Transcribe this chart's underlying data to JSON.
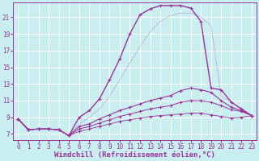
{
  "background_color": "#c8eef0",
  "grid_color": "#ffffff",
  "line_color": "#993399",
  "xlabel": "Windchill (Refroidissement éolien,°C)",
  "x_ticks": [
    0,
    1,
    2,
    3,
    4,
    5,
    6,
    7,
    8,
    9,
    10,
    11,
    12,
    13,
    14,
    15,
    16,
    17,
    18,
    19,
    20,
    21,
    22,
    23
  ],
  "y_ticks": [
    7,
    9,
    11,
    13,
    15,
    17,
    19,
    21
  ],
  "xlim": [
    -0.5,
    23.5
  ],
  "ylim": [
    6.3,
    22.8
  ],
  "curve1_x": [
    0,
    1,
    2,
    3,
    4,
    5,
    6,
    7,
    8,
    9,
    10,
    11,
    12,
    13,
    14,
    15,
    16,
    17,
    18,
    19,
    20,
    21,
    22,
    23
  ],
  "curve1_y": [
    8.8,
    7.5,
    7.6,
    7.6,
    7.5,
    6.8,
    9.0,
    9.8,
    11.2,
    13.5,
    16.0,
    19.0,
    21.3,
    22.0,
    22.4,
    22.4,
    22.4,
    22.1,
    20.5,
    12.5,
    12.3,
    10.8,
    10.0,
    9.2
  ],
  "curve2_x": [
    0,
    1,
    2,
    3,
    4,
    5,
    6,
    7,
    8,
    9,
    10,
    11,
    12,
    13,
    14,
    15,
    16,
    17,
    18,
    19,
    20,
    21,
    22,
    23
  ],
  "curve2_y": [
    8.8,
    7.5,
    7.6,
    7.6,
    7.5,
    6.8,
    7.9,
    8.2,
    8.8,
    9.3,
    9.8,
    10.2,
    10.6,
    11.0,
    11.3,
    11.6,
    12.2,
    12.5,
    12.3,
    12.0,
    11.0,
    10.2,
    9.8,
    9.2
  ],
  "curve3_x": [
    0,
    1,
    2,
    3,
    4,
    5,
    6,
    7,
    8,
    9,
    10,
    11,
    12,
    13,
    14,
    15,
    16,
    17,
    18,
    19,
    20,
    21,
    22,
    23
  ],
  "curve3_y": [
    8.8,
    7.5,
    7.6,
    7.6,
    7.5,
    6.8,
    7.6,
    7.9,
    8.3,
    8.7,
    9.1,
    9.4,
    9.7,
    10.0,
    10.2,
    10.4,
    10.8,
    11.0,
    11.0,
    10.8,
    10.4,
    9.9,
    9.7,
    9.2
  ],
  "curve4_x": [
    0,
    1,
    2,
    3,
    4,
    5,
    6,
    7,
    8,
    9,
    10,
    11,
    12,
    13,
    14,
    15,
    16,
    17,
    18,
    19,
    20,
    21,
    22,
    23
  ],
  "curve4_y": [
    8.8,
    7.5,
    7.6,
    7.6,
    7.5,
    6.8,
    7.3,
    7.6,
    7.9,
    8.2,
    8.5,
    8.7,
    8.9,
    9.1,
    9.2,
    9.3,
    9.4,
    9.5,
    9.5,
    9.3,
    9.1,
    8.9,
    9.0,
    9.2
  ],
  "curve_dotted_x": [
    0,
    1,
    2,
    3,
    4,
    5,
    6,
    7,
    8,
    9,
    10,
    11,
    12,
    13,
    14,
    15,
    16,
    17,
    18,
    19,
    20,
    21,
    22,
    23
  ],
  "curve_dotted_y": [
    8.8,
    7.5,
    7.6,
    7.6,
    7.5,
    6.8,
    8.2,
    9.0,
    10.0,
    11.5,
    13.5,
    15.5,
    17.5,
    19.3,
    20.5,
    21.2,
    21.5,
    21.5,
    21.0,
    20.0,
    11.5,
    10.8,
    10.0,
    9.2
  ],
  "tick_fontsize": 5.5,
  "xlabel_fontsize": 6.5
}
